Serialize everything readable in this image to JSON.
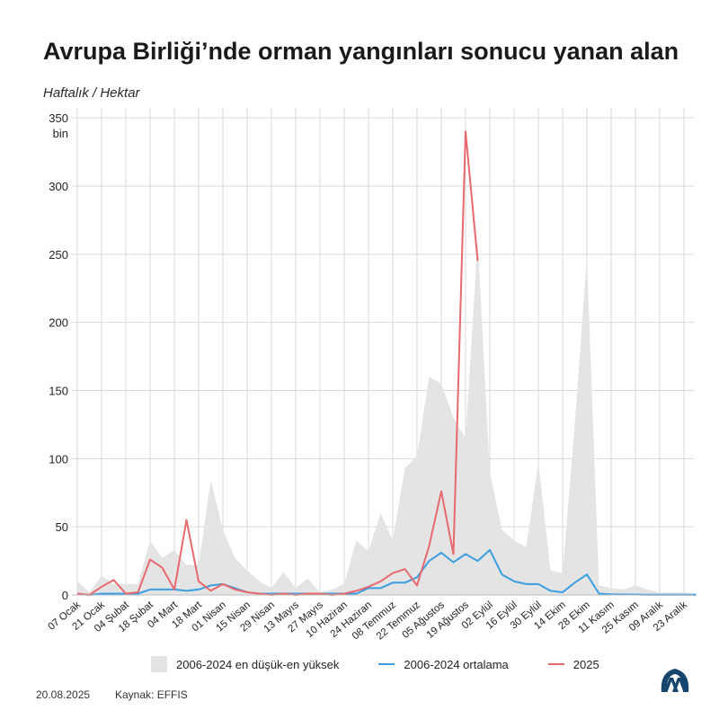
{
  "header": {
    "title": "Avrupa Birliği’nde orman yangınları sonucu yanan alan",
    "subtitle": "Haftalık / Hektar"
  },
  "legend": {
    "range_label": "2006-2024 en düşük-en yüksek",
    "avg_label": "2006-2024 ortalama",
    "current_label": "2025"
  },
  "footer": {
    "date": "20.08.2025",
    "source": "Kaynak: EFFIS"
  },
  "logo": {
    "name": "AA",
    "icon": "aa-logo-icon"
  },
  "colors": {
    "range": "#e4e4e4",
    "avg": "#3a9ee0",
    "current": "#e8696d",
    "grid": "#d9d9d9"
  },
  "chart_data": {
    "type": "line",
    "title": "Avrupa Birliği’nde orman yangınları sonucu yanan alan",
    "ylabel": "Haftalık / Hektar",
    "y_unit_label": "bin",
    "ylim": [
      0,
      350
    ],
    "yticks": [
      0,
      50,
      100,
      150,
      200,
      250,
      300,
      350
    ],
    "grid": true,
    "legend_position": "bottom",
    "tick_labels": [
      "07 Ocak",
      "21 Ocak",
      "04 Şubat",
      "18 Şubat",
      "04 Mart",
      "18 Mart",
      "01 Nisan",
      "15 Nisan",
      "29 Nisan",
      "13 Mayıs",
      "27 Mayıs",
      "10 Haziran",
      "24 Haziran",
      "08 Temmuz",
      "22 Temmuz",
      "05 Ağustos",
      "19 Ağustos",
      "02 Eylül",
      "16 Eylül",
      "30 Eylül",
      "14 Ekim",
      "28 Ekim",
      "11 Kasım",
      "25 Kasım",
      "09 Aralık",
      "23 Aralık"
    ],
    "weeks": 52,
    "series": [
      {
        "name": "2006-2024 en düşük-en yüksek",
        "kind": "range",
        "low": [
          0,
          0,
          0,
          0,
          0,
          0,
          0,
          0,
          0,
          0,
          0,
          0,
          0,
          0,
          0,
          0,
          0,
          0,
          0,
          0,
          0,
          0,
          0,
          0,
          0,
          0,
          0,
          0,
          0,
          0,
          0,
          0,
          0,
          0,
          0,
          0,
          0,
          0,
          0,
          0,
          0,
          0,
          0,
          0,
          0,
          0,
          0,
          0,
          0,
          0,
          0,
          0
        ],
        "high": [
          10,
          2,
          14,
          8,
          8,
          8,
          40,
          27,
          33,
          22,
          22,
          84,
          48,
          27,
          18,
          10,
          5,
          17,
          5,
          12,
          2,
          4,
          8,
          40,
          32,
          60,
          40,
          93,
          102,
          160,
          155,
          130,
          115,
          260,
          90,
          48,
          40,
          35,
          97,
          18,
          16,
          125,
          248,
          7,
          5,
          4,
          7,
          4,
          2,
          2,
          2,
          1
        ]
      },
      {
        "name": "2006-2024 ortalama",
        "kind": "line",
        "values": [
          1,
          0,
          1,
          1,
          1,
          1,
          4,
          4,
          4,
          3,
          4,
          7,
          8,
          5,
          2,
          1,
          1,
          1,
          1,
          1,
          1,
          1,
          1,
          1,
          5,
          5,
          9,
          9,
          13,
          25,
          31,
          24,
          30,
          25,
          33,
          15,
          10,
          8,
          8,
          3,
          2,
          9,
          15,
          1,
          0.5,
          0.3,
          0.3,
          0.2,
          0.2,
          0.2,
          0.2,
          0.2
        ]
      },
      {
        "name": "2025",
        "kind": "line",
        "values": [
          1,
          0,
          6,
          11,
          1,
          2,
          26,
          20,
          4,
          55,
          10,
          3,
          8,
          4,
          2,
          1,
          0,
          1,
          0,
          1,
          1,
          0,
          1,
          3,
          6,
          10,
          16,
          19,
          7,
          36,
          76,
          30,
          340,
          245
        ]
      }
    ]
  }
}
